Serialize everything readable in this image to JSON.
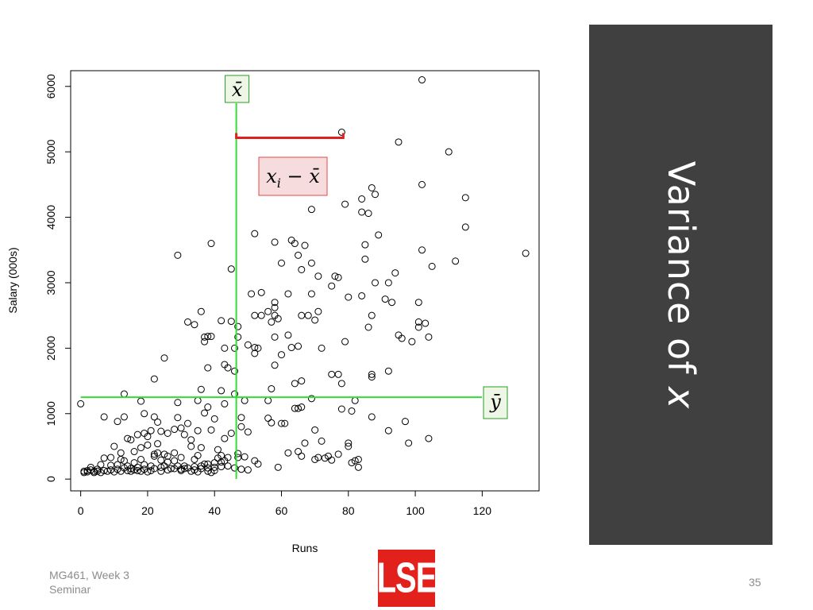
{
  "slide": {
    "title_main": "Variance of ",
    "title_var": "x",
    "footer_line1": "MG461, Week 3",
    "footer_line2": "Seminar",
    "page_number": "35",
    "logo_text": "LSE",
    "panel_color": "#404040",
    "logo_color": "#e2211c"
  },
  "chart_data": {
    "type": "scatter",
    "xlabel": "Runs",
    "ylabel": "Salary (000s)",
    "xlim": [
      -3,
      137
    ],
    "ylim": [
      -180,
      6240
    ],
    "xticks": [
      0,
      20,
      40,
      60,
      80,
      100,
      120
    ],
    "yticks": [
      0,
      1000,
      2000,
      3000,
      4000,
      5000,
      6000
    ],
    "grid": false,
    "mean_x": 46.5,
    "mean_y": 1250,
    "mean_line_color": "#33dd33",
    "deviation_color": "#e02020",
    "highlight_point": [
      78,
      5300
    ],
    "annotations": {
      "xbar_label": "x̄",
      "ybar_label": "ȳ",
      "deviation_label_x": "x",
      "deviation_label_sub": "i",
      "deviation_label_rest": " − x̄"
    },
    "points": [
      [
        102,
        6100
      ],
      [
        78,
        5300
      ],
      [
        95,
        5150
      ],
      [
        110,
        5000
      ],
      [
        102,
        4500
      ],
      [
        87,
        4450
      ],
      [
        88,
        4350
      ],
      [
        115,
        4300
      ],
      [
        84,
        4280
      ],
      [
        79,
        4200
      ],
      [
        69,
        4120
      ],
      [
        84,
        4080
      ],
      [
        86,
        4060
      ],
      [
        115,
        3850
      ],
      [
        52,
        3750
      ],
      [
        89,
        3730
      ],
      [
        63,
        3650
      ],
      [
        64,
        3600
      ],
      [
        58,
        3620
      ],
      [
        67,
        3570
      ],
      [
        85,
        3580
      ],
      [
        39,
        3600
      ],
      [
        102,
        3500
      ],
      [
        29,
        3420
      ],
      [
        65,
        3420
      ],
      [
        133,
        3450
      ],
      [
        112,
        3330
      ],
      [
        85,
        3360
      ],
      [
        60,
        3300
      ],
      [
        69,
        3300
      ],
      [
        105,
        3250
      ],
      [
        45,
        3210
      ],
      [
        66,
        3200
      ],
      [
        94,
        3150
      ],
      [
        76,
        3100
      ],
      [
        71,
        3100
      ],
      [
        77,
        3080
      ],
      [
        92,
        3000
      ],
      [
        88,
        3000
      ],
      [
        75,
        2950
      ],
      [
        54,
        2850
      ],
      [
        51,
        2830
      ],
      [
        62,
        2830
      ],
      [
        69,
        2830
      ],
      [
        80,
        2780
      ],
      [
        91,
        2750
      ],
      [
        84,
        2800
      ],
      [
        58,
        2700
      ],
      [
        93,
        2700
      ],
      [
        101,
        2700
      ],
      [
        58,
        2620
      ],
      [
        71,
        2560
      ],
      [
        56,
        2560
      ],
      [
        68,
        2500
      ],
      [
        58,
        2500
      ],
      [
        87,
        2500
      ],
      [
        66,
        2500
      ],
      [
        52,
        2500
      ],
      [
        54,
        2500
      ],
      [
        59,
        2450
      ],
      [
        70,
        2430
      ],
      [
        42,
        2420
      ],
      [
        45,
        2410
      ],
      [
        32,
        2400
      ],
      [
        34,
        2360
      ],
      [
        57,
        2400
      ],
      [
        101,
        2400
      ],
      [
        103,
        2380
      ],
      [
        101,
        2320
      ],
      [
        47,
        2330
      ],
      [
        36,
        2560
      ],
      [
        86,
        2320
      ],
      [
        38,
        2180
      ],
      [
        37,
        2170
      ],
      [
        39,
        2180
      ],
      [
        62,
        2200
      ],
      [
        58,
        2170
      ],
      [
        47,
        2170
      ],
      [
        95,
        2200
      ],
      [
        96,
        2150
      ],
      [
        104,
        2170
      ],
      [
        99,
        2100
      ],
      [
        79,
        2100
      ],
      [
        37,
        2100
      ],
      [
        65,
        2030
      ],
      [
        43,
        2000
      ],
      [
        63,
        2010
      ],
      [
        72,
        2000
      ],
      [
        52,
        2010
      ],
      [
        46,
        2000
      ],
      [
        50,
        2050
      ],
      [
        53,
        2000
      ],
      [
        52,
        1920
      ],
      [
        46,
        1650
      ],
      [
        38,
        1700
      ],
      [
        44,
        1700
      ],
      [
        43,
        1750
      ],
      [
        60,
        1900
      ],
      [
        75,
        1600
      ],
      [
        77,
        1600
      ],
      [
        87,
        1600
      ],
      [
        87,
        1560
      ],
      [
        25,
        1850
      ],
      [
        22,
        1530
      ],
      [
        92,
        1650
      ],
      [
        58,
        1740
      ],
      [
        64,
        1460
      ],
      [
        66,
        1500
      ],
      [
        78,
        1460
      ],
      [
        42,
        1350
      ],
      [
        36,
        1370
      ],
      [
        57,
        1380
      ],
      [
        13,
        1300
      ],
      [
        46,
        1300
      ],
      [
        69,
        1230
      ],
      [
        56,
        1200
      ],
      [
        18,
        1190
      ],
      [
        35,
        1200
      ],
      [
        29,
        1170
      ],
      [
        49,
        1200
      ],
      [
        82,
        1200
      ],
      [
        43,
        1150
      ],
      [
        38,
        1100
      ],
      [
        66,
        1100
      ],
      [
        64,
        1080
      ],
      [
        65,
        1080
      ],
      [
        0,
        1150
      ],
      [
        19,
        1000
      ],
      [
        22,
        950
      ],
      [
        13,
        950
      ],
      [
        7,
        950
      ],
      [
        11,
        880
      ],
      [
        23,
        870
      ],
      [
        32,
        850
      ],
      [
        29,
        940
      ],
      [
        48,
        940
      ],
      [
        56,
        930
      ],
      [
        57,
        860
      ],
      [
        87,
        950
      ],
      [
        78,
        1070
      ],
      [
        81,
        1040
      ],
      [
        97,
        880
      ],
      [
        92,
        740
      ],
      [
        104,
        620
      ],
      [
        98,
        550
      ],
      [
        70,
        750
      ],
      [
        72,
        580
      ],
      [
        65,
        420
      ],
      [
        62,
        400
      ],
      [
        66,
        350
      ],
      [
        71,
        330
      ],
      [
        70,
        300
      ],
      [
        75,
        290
      ],
      [
        77,
        380
      ],
      [
        74,
        350
      ],
      [
        73,
        320
      ],
      [
        80,
        550
      ],
      [
        80,
        500
      ],
      [
        81,
        250
      ],
      [
        83,
        180
      ],
      [
        82,
        280
      ],
      [
        83,
        300
      ],
      [
        59,
        180
      ],
      [
        67,
        550
      ],
      [
        50,
        720
      ],
      [
        60,
        850
      ],
      [
        61,
        850
      ],
      [
        48,
        800
      ],
      [
        43,
        620
      ],
      [
        45,
        700
      ],
      [
        31,
        680
      ],
      [
        33,
        500
      ],
      [
        36,
        480
      ],
      [
        41,
        450
      ],
      [
        47,
        390
      ],
      [
        42,
        360
      ],
      [
        43,
        280
      ],
      [
        30,
        330
      ],
      [
        25,
        380
      ],
      [
        22,
        380
      ],
      [
        16,
        420
      ],
      [
        12,
        400
      ],
      [
        15,
        600
      ],
      [
        20,
        520
      ],
      [
        17,
        680
      ],
      [
        18,
        480
      ],
      [
        23,
        540
      ],
      [
        26,
        700
      ],
      [
        24,
        730
      ],
      [
        21,
        740
      ],
      [
        19,
        700
      ],
      [
        14,
        620
      ],
      [
        10,
        500
      ],
      [
        9,
        330
      ],
      [
        7,
        320
      ],
      [
        12,
        300
      ],
      [
        14,
        200
      ],
      [
        6,
        220
      ],
      [
        3,
        180
      ],
      [
        5,
        120
      ],
      [
        1,
        120
      ],
      [
        2,
        110
      ],
      [
        4,
        120
      ],
      [
        6,
        100
      ],
      [
        8,
        120
      ],
      [
        10,
        110
      ],
      [
        12,
        120
      ],
      [
        14,
        130
      ],
      [
        16,
        140
      ],
      [
        18,
        120
      ],
      [
        20,
        110
      ],
      [
        22,
        160
      ],
      [
        24,
        180
      ],
      [
        26,
        140
      ],
      [
        28,
        160
      ],
      [
        30,
        150
      ],
      [
        32,
        170
      ],
      [
        34,
        190
      ],
      [
        36,
        160
      ],
      [
        38,
        170
      ],
      [
        40,
        180
      ],
      [
        42,
        190
      ],
      [
        44,
        200
      ],
      [
        46,
        170
      ],
      [
        48,
        150
      ],
      [
        50,
        140
      ],
      [
        52,
        280
      ],
      [
        53,
        230
      ],
      [
        38,
        120
      ],
      [
        39,
        100
      ],
      [
        40,
        130
      ],
      [
        36,
        200
      ],
      [
        37,
        230
      ],
      [
        34,
        300
      ],
      [
        35,
        360
      ],
      [
        28,
        280
      ],
      [
        29,
        200
      ],
      [
        27,
        160
      ],
      [
        21,
        200
      ],
      [
        19,
        220
      ],
      [
        17,
        180
      ],
      [
        15,
        160
      ],
      [
        13,
        170
      ],
      [
        11,
        150
      ],
      [
        9,
        140
      ],
      [
        7,
        130
      ],
      [
        5,
        150
      ],
      [
        4,
        100
      ],
      [
        3,
        140
      ],
      [
        2,
        130
      ],
      [
        1,
        100
      ],
      [
        44,
        330
      ],
      [
        41,
        320
      ],
      [
        42,
        260
      ],
      [
        40,
        250
      ],
      [
        38,
        230
      ],
      [
        35,
        110
      ],
      [
        34,
        140
      ],
      [
        33,
        120
      ],
      [
        31,
        200
      ],
      [
        26,
        260
      ],
      [
        24,
        290
      ],
      [
        23,
        400
      ],
      [
        20,
        650
      ],
      [
        18,
        300
      ],
      [
        16,
        250
      ],
      [
        13,
        280
      ],
      [
        11,
        220
      ],
      [
        9,
        210
      ],
      [
        31,
        160
      ],
      [
        30,
        130
      ],
      [
        24,
        120
      ],
      [
        25,
        200
      ],
      [
        15,
        120
      ],
      [
        17,
        130
      ],
      [
        19,
        150
      ],
      [
        21,
        130
      ],
      [
        26,
        350
      ],
      [
        28,
        400
      ],
      [
        33,
        600
      ],
      [
        35,
        740
      ],
      [
        39,
        750
      ],
      [
        40,
        920
      ],
      [
        37,
        1010
      ],
      [
        28,
        760
      ],
      [
        30,
        780
      ],
      [
        22,
        350
      ],
      [
        47,
        330
      ],
      [
        49,
        340
      ]
    ]
  }
}
